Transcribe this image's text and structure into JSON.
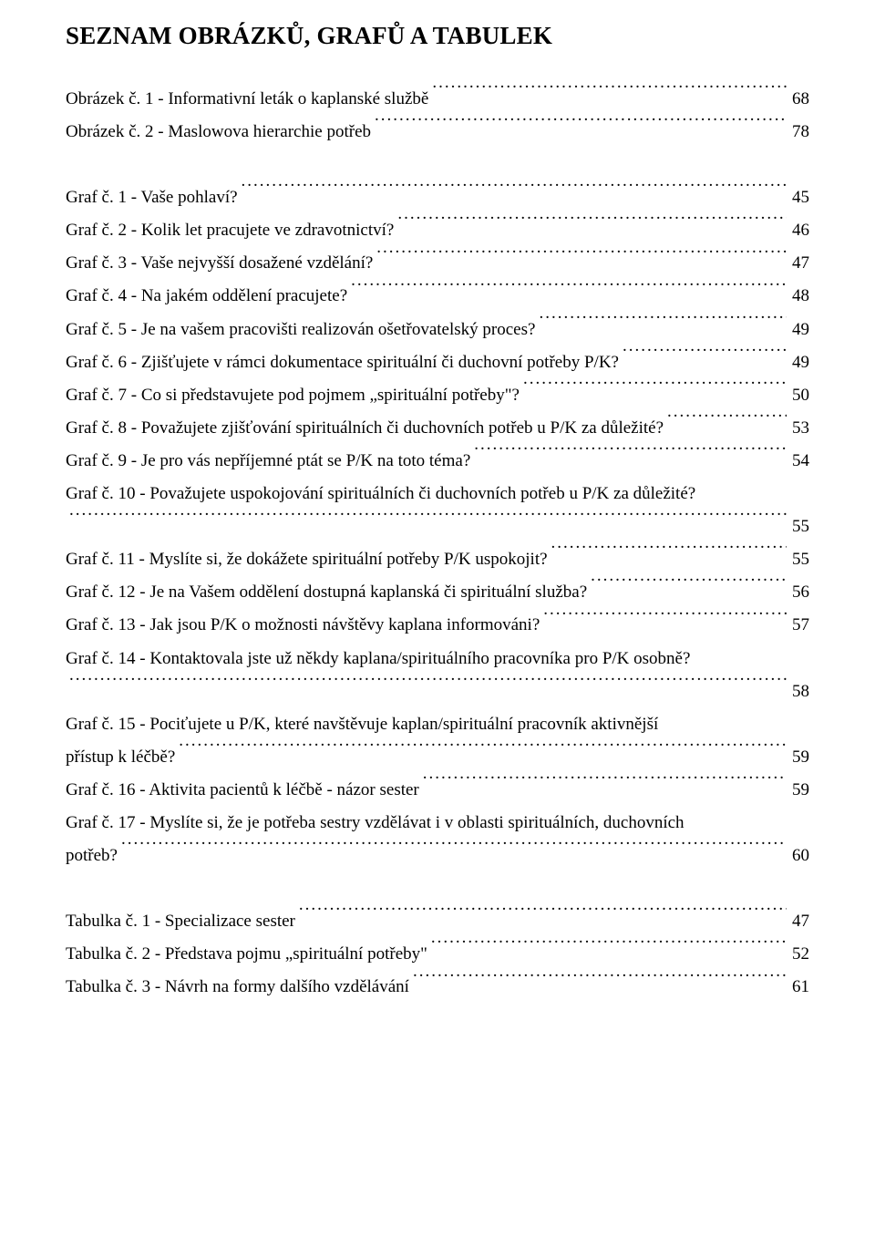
{
  "heading": "SEZNAM OBRÁZKŮ, GRAFŮ A TABULEK",
  "groups": [
    {
      "id": "obrazky",
      "entries": [
        {
          "label": "Obrázek č. 1 - Informativní leták o kaplanské službě",
          "page": "68"
        },
        {
          "label": "Obrázek č. 2 - Maslowova hierarchie potřeb",
          "page": "78"
        }
      ]
    },
    {
      "id": "grafy",
      "entries": [
        {
          "label": "Graf č. 1 - Vaše pohlaví?",
          "page": "45"
        },
        {
          "label": "Graf č. 2 - Kolik let pracujete ve zdravotnictví?",
          "page": "46"
        },
        {
          "label": "Graf č. 3 - Vaše nejvyšší dosažené vzdělání?",
          "page": "47"
        },
        {
          "label": "Graf č. 4 - Na jakém oddělení pracujete?",
          "page": "48"
        },
        {
          "label": "Graf č. 5 -  Je na vašem pracovišti realizován ošetřovatelský proces?",
          "page": "49"
        },
        {
          "label": "Graf č. 6 - Zjišťujete v rámci dokumentace spirituální či duchovní potřeby P/K?",
          "page": "49"
        },
        {
          "label": "Graf č. 7 - Co si představujete pod pojmem „spirituální potřeby\"?",
          "page": "50"
        },
        {
          "label": "Graf č. 8 - Považujete zjišťování spirituálních či duchovních potřeb u P/K za důležité?",
          "page": "53"
        },
        {
          "label": "Graf č. 9 - Je pro vás nepříjemné ptát se P/K na toto téma?",
          "page": "54"
        },
        {
          "wrap_first": "Graf č. 10 - Považujete uspokojování spirituálních či duchovních potřeb u P/K za důležité?",
          "label": "",
          "page": "55"
        },
        {
          "label": "Graf č. 11 - Myslíte si, že dokážete spirituální potřeby P/K uspokojit?",
          "page": "55"
        },
        {
          "label": "Graf č. 12 - Je na Vašem oddělení dostupná kaplanská či spirituální služba?",
          "page": "56"
        },
        {
          "label": "Graf č. 13 - Jak jsou P/K o možnosti návštěvy kaplana informováni?",
          "page": "57"
        },
        {
          "wrap_first": "Graf č. 14 - Kontaktovala jste už někdy kaplana/spirituálního pracovníka pro P/K osobně?",
          "label": "",
          "page": "58"
        },
        {
          "wrap_first": "Graf č. 15 - Pociťujete u P/K, které navštěvuje kaplan/spirituální pracovník aktivnější",
          "label": "přístup k léčbě?",
          "page": "59"
        },
        {
          "label": "Graf č. 16 - Aktivita pacientů k léčbě - názor sester",
          "page": "59"
        },
        {
          "wrap_first": "Graf č. 17 - Myslíte si, že je potřeba sestry vzdělávat i v oblasti spirituálních, duchovních",
          "label": "potřeb?",
          "page": "60"
        }
      ]
    },
    {
      "id": "tabulky",
      "entries": [
        {
          "label": "Tabulka č. 1 - Specializace sester",
          "page": "47"
        },
        {
          "label": "Tabulka č. 2 - Představa pojmu „spirituální potřeby\"",
          "page": "52"
        },
        {
          "label": "Tabulka č. 3 - Návrh na formy dalšího vzdělávání",
          "page": "61"
        }
      ]
    }
  ]
}
